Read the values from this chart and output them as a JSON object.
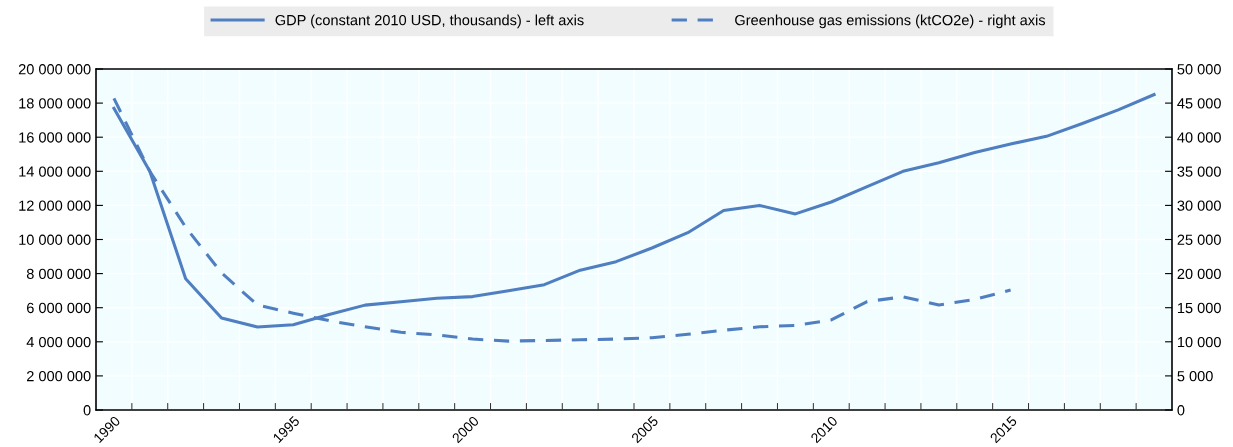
{
  "chart_data": {
    "type": "line",
    "categories": [
      "1990",
      null,
      null,
      null,
      null,
      "1995",
      null,
      null,
      null,
      null,
      "2000",
      null,
      null,
      null,
      null,
      "2005",
      null,
      null,
      null,
      null,
      "2010",
      null,
      null,
      null,
      null,
      "2015",
      null,
      null,
      null,
      null
    ],
    "series": [
      {
        "name": "GDP (constant 2010 USD, thousands) - left axis",
        "color": "#4f7fc0",
        "line_style": "solid",
        "values": [
          17700000,
          14000000,
          7700000,
          5400000,
          4870000,
          5000000,
          5600000,
          6150000,
          6350000,
          6550000,
          6650000,
          7000000,
          7350000,
          8200000,
          8700000,
          9500000,
          10400000,
          11700000,
          12000000,
          11500000,
          12200000,
          13100000,
          14000000,
          14500000,
          15100000,
          15600000,
          16050000,
          16800000,
          17600000,
          18500000
        ]
      },
      {
        "name": "Greenhouse gas emissions (ktCO2e) - right axis",
        "color": "#4f7fc0",
        "line_style": "dashed",
        "axis": "y2",
        "values": [
          45700,
          35000,
          26800,
          20100,
          15400,
          14200,
          13100,
          12200,
          11400,
          11000,
          10400,
          10100,
          10200,
          10300,
          10400,
          10600,
          11100,
          11700,
          12200,
          12400,
          13200,
          15900,
          16600,
          15400,
          16200,
          17600,
          null,
          null,
          null,
          null
        ]
      }
    ],
    "ylim": [
      0,
      20000000
    ],
    "yticks": [
      0,
      {
        "value": 2000000,
        "label": "2 000 000"
      },
      {
        "value": 4000000,
        "label": "4 000 000"
      },
      {
        "value": 6000000,
        "label": "6 000 000"
      },
      {
        "value": 8000000,
        "label": "8 000 000"
      },
      {
        "value": 10000000,
        "label": "10 000 000"
      },
      {
        "value": 12000000,
        "label": "12 000 000"
      },
      {
        "value": 14000000,
        "label": "14 000 000"
      },
      {
        "value": 16000000,
        "label": "16 000 000"
      },
      {
        "value": 18000000,
        "label": "18 000 000"
      },
      {
        "value": 20000000,
        "label": "20 000 000"
      }
    ],
    "y2lim": [
      0,
      50000
    ],
    "y2ticks": [
      0,
      {
        "value": 5000,
        "label": "5 000"
      },
      {
        "value": 10000,
        "label": "10 000"
      },
      {
        "value": 15000,
        "label": "15 000"
      },
      {
        "value": 20000,
        "label": "20 000"
      },
      {
        "value": 25000,
        "label": "25 000"
      },
      {
        "value": 30000,
        "label": "30 000"
      },
      {
        "value": 35000,
        "label": "35 000"
      },
      {
        "value": 40000,
        "label": "40 000"
      },
      {
        "value": 45000,
        "label": "45 000"
      },
      {
        "value": 50000,
        "label": "50 000"
      }
    ],
    "grid": true,
    "legend": "top"
  }
}
